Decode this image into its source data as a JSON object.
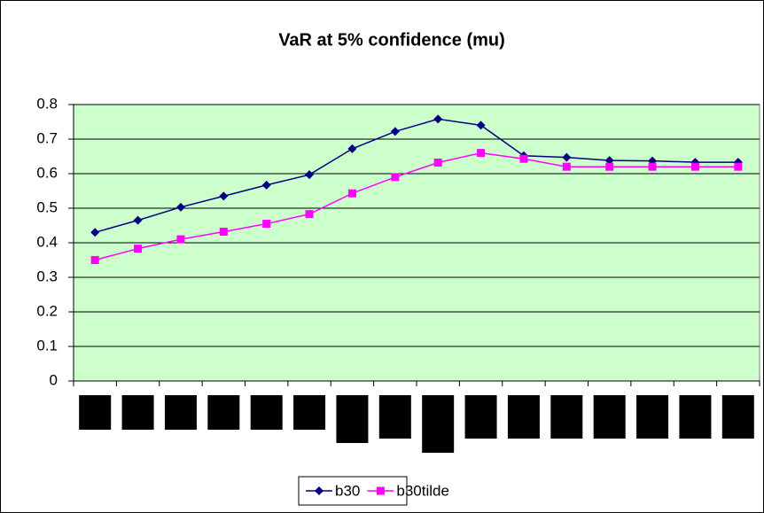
{
  "chart_data": {
    "type": "line",
    "title": "VaR at 5% confidence (mu)",
    "categories": [
      null,
      null,
      null,
      null,
      null,
      null,
      null,
      null,
      null,
      null,
      null,
      null,
      null,
      null,
      null,
      null
    ],
    "series": [
      {
        "name": "b30",
        "color": "#000080",
        "marker": "diamond",
        "values": [
          0.43,
          0.465,
          0.503,
          0.535,
          0.567,
          0.597,
          0.672,
          0.722,
          0.758,
          0.74,
          0.652,
          0.647,
          0.638,
          0.637,
          0.633,
          0.633
        ]
      },
      {
        "name": "b30tilde",
        "color": "#ff00ff",
        "marker": "square",
        "values": [
          0.35,
          0.383,
          0.41,
          0.432,
          0.455,
          0.483,
          0.543,
          0.59,
          0.632,
          0.66,
          0.643,
          0.62,
          0.62,
          0.62,
          0.62,
          0.62
        ]
      }
    ],
    "ylim": [
      0,
      0.8
    ],
    "yticks": [
      0,
      0.1,
      0.2,
      0.3,
      0.4,
      0.5,
      0.6,
      0.7,
      0.8
    ],
    "grid": true,
    "legend": "bottom",
    "plot_background": "#ccffcc"
  }
}
